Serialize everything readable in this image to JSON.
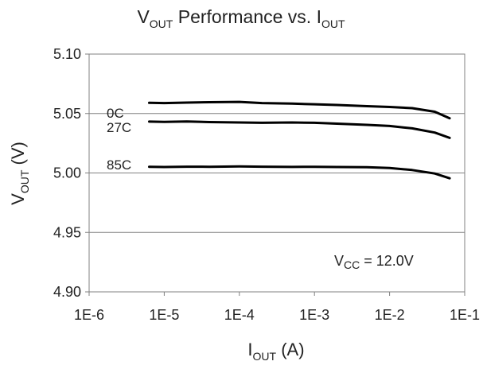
{
  "chart_data": {
    "type": "line",
    "title": {
      "main": "V",
      "main_sub": "OUT",
      "rest": " Performance vs. I",
      "rest_sub": "OUT"
    },
    "xlabel": {
      "main": "I",
      "sub": "OUT",
      "rest": " (A)"
    },
    "ylabel": {
      "main": "V",
      "sub": "OUT",
      "rest": " (V)"
    },
    "x_scale": "log",
    "xlim": [
      1e-06,
      0.1
    ],
    "ylim": [
      4.9,
      5.1
    ],
    "x_ticks": [
      {
        "value": 1e-06,
        "label": "1E-6"
      },
      {
        "value": 1e-05,
        "label": "1E-5"
      },
      {
        "value": 0.0001,
        "label": "1E-4"
      },
      {
        "value": 0.001,
        "label": "1E-3"
      },
      {
        "value": 0.01,
        "label": "1E-2"
      },
      {
        "value": 0.1,
        "label": "1E-1"
      }
    ],
    "y_ticks": [
      {
        "value": 5.1,
        "label": "5.10"
      },
      {
        "value": 5.05,
        "label": "5.05"
      },
      {
        "value": 5.0,
        "label": "5.00"
      },
      {
        "value": 4.95,
        "label": "4.95"
      },
      {
        "value": 4.9,
        "label": "4.90"
      }
    ],
    "grid": "horizontal",
    "line_color": "#000000",
    "series": [
      {
        "name": "0C",
        "points": [
          [
            6.3e-06,
            5.059
          ],
          [
            1e-05,
            5.0588
          ],
          [
            2e-05,
            5.0592
          ],
          [
            4e-05,
            5.0595
          ],
          [
            0.0001,
            5.0598
          ],
          [
            0.0002,
            5.0588
          ],
          [
            0.0005,
            5.0583
          ],
          [
            0.001,
            5.0578
          ],
          [
            0.002,
            5.0572
          ],
          [
            0.005,
            5.0562
          ],
          [
            0.01,
            5.0555
          ],
          [
            0.02,
            5.0545
          ],
          [
            0.04,
            5.0515
          ],
          [
            0.063,
            5.046
          ]
        ]
      },
      {
        "name": "27C",
        "points": [
          [
            6.3e-06,
            5.0432
          ],
          [
            1e-05,
            5.043
          ],
          [
            2e-05,
            5.0433
          ],
          [
            4e-05,
            5.0428
          ],
          [
            0.0001,
            5.0425
          ],
          [
            0.0002,
            5.0422
          ],
          [
            0.0005,
            5.0425
          ],
          [
            0.001,
            5.0422
          ],
          [
            0.002,
            5.0415
          ],
          [
            0.005,
            5.0405
          ],
          [
            0.01,
            5.0395
          ],
          [
            0.02,
            5.0375
          ],
          [
            0.04,
            5.034
          ],
          [
            0.063,
            5.0295
          ]
        ]
      },
      {
        "name": "85C",
        "points": [
          [
            6.3e-06,
            5.0052
          ],
          [
            1e-05,
            5.005
          ],
          [
            2e-05,
            5.0053
          ],
          [
            4e-05,
            5.0052
          ],
          [
            0.0001,
            5.0055
          ],
          [
            0.0002,
            5.0053
          ],
          [
            0.0005,
            5.0051
          ],
          [
            0.001,
            5.0052
          ],
          [
            0.002,
            5.005
          ],
          [
            0.005,
            5.0048
          ],
          [
            0.01,
            5.0042
          ],
          [
            0.02,
            5.0025
          ],
          [
            0.04,
            4.9995
          ],
          [
            0.063,
            4.9955
          ]
        ]
      }
    ],
    "annotation": {
      "main": "V",
      "sub": "CC",
      "rest": " = 12.0V"
    }
  }
}
